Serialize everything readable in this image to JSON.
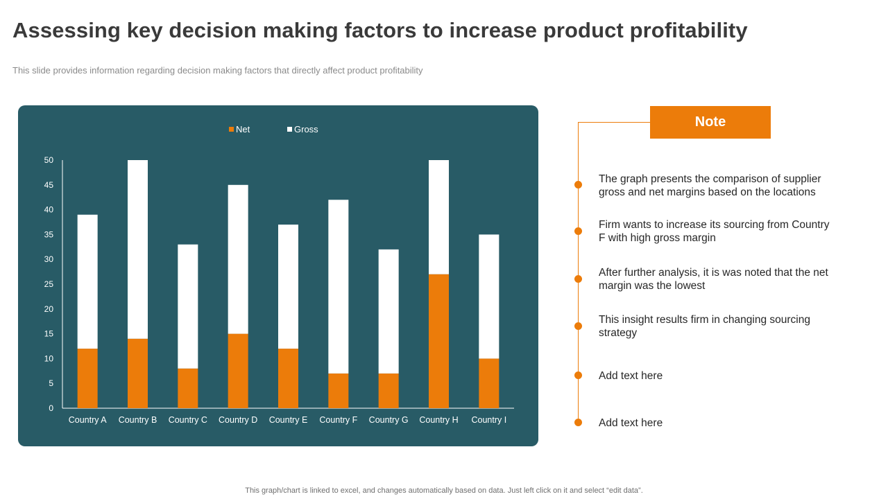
{
  "header": {
    "title": "Assessing key decision making factors to increase product profitability",
    "subtitle": "This slide provides information regarding decision making factors that directly affect product profitability"
  },
  "chart_data": {
    "type": "bar",
    "stacked": true,
    "categories": [
      "Country A",
      "Country B",
      "Country C",
      "Country D",
      "Country E",
      "Country F",
      "Country G",
      "Country H",
      "Country I"
    ],
    "series": [
      {
        "name": "Net",
        "values": [
          12,
          14,
          8,
          15,
          12,
          7,
          7,
          27,
          10
        ],
        "color": "#ec7c0a"
      },
      {
        "name": "Gross",
        "values": [
          27,
          36,
          25,
          30,
          25,
          35,
          25,
          23,
          25
        ],
        "color": "#ffffff"
      }
    ],
    "ylim": [
      0,
      50
    ],
    "yticks": [
      0,
      5,
      10,
      15,
      20,
      25,
      30,
      35,
      40,
      45,
      50
    ],
    "legend": "top-center",
    "grid": false,
    "title": "",
    "xlabel": "",
    "ylabel": ""
  },
  "note": {
    "heading": "Note",
    "items": [
      "The graph presents the comparison of supplier gross and net margins based on the locations",
      "Firm wants to increase its sourcing from Country F with high gross margin",
      "After further analysis, it is was noted that the net margin was the lowest",
      "This insight results firm in changing sourcing strategy",
      "Add text here",
      "Add text here"
    ]
  },
  "footer": "This graph/chart is linked to excel, and changes automatically based on data. Just left click on it and select “edit data”.",
  "colors": {
    "panel": "#285b66",
    "accent": "#ec7c0a"
  }
}
